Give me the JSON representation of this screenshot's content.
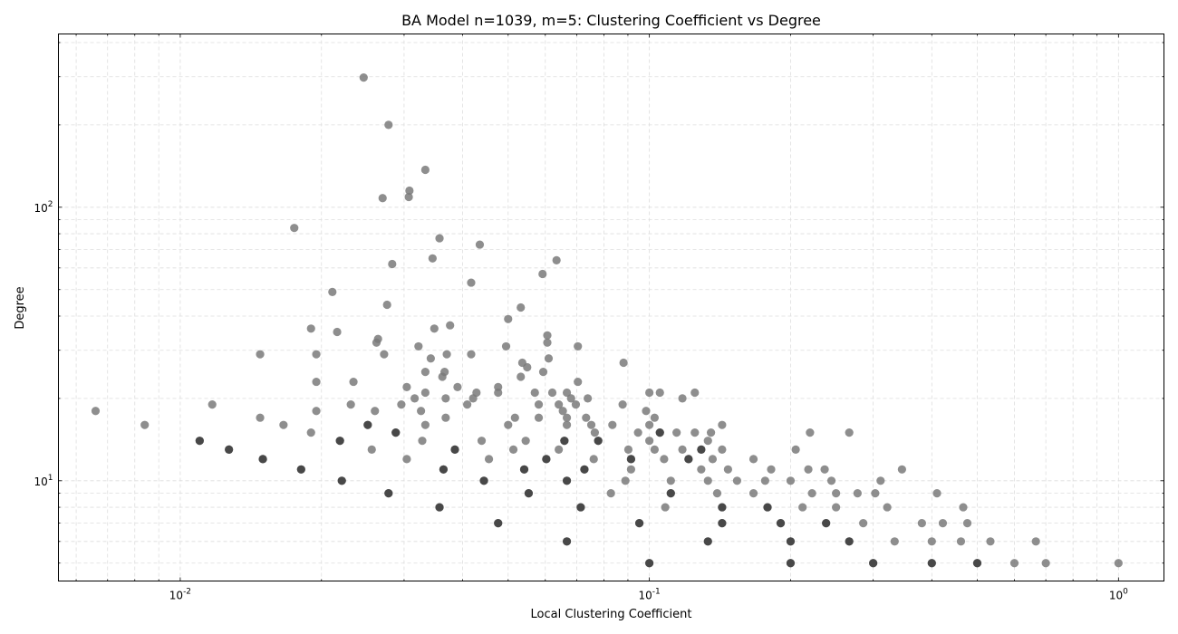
{
  "chart_data": {
    "type": "scatter",
    "title": "BA Model n=1039, m=5: Clustering Coefficient vs Degree",
    "xlabel": "Local Clustering Coefficient",
    "ylabel": "Degree",
    "xscale": "log",
    "yscale": "log",
    "xlim": [
      0.0055,
      1.25
    ],
    "ylim": [
      4.3,
      430
    ],
    "grid": true,
    "x_ticks": [
      {
        "value": 0.01,
        "label": "10^-2"
      },
      {
        "value": 0.1,
        "label": "10^-1"
      },
      {
        "value": 1,
        "label": "10^0"
      }
    ],
    "y_ticks": [
      {
        "value": 10,
        "label": "10^1"
      },
      {
        "value": 100,
        "label": "10^2"
      }
    ],
    "point_colors": {
      "light": "#7a7a7a",
      "dense": "#404040"
    },
    "points": [
      [
        0.0066,
        18
      ],
      [
        0.0084,
        16
      ],
      [
        0.011,
        14
      ],
      [
        0.0117,
        19
      ],
      [
        0.0127,
        13
      ],
      [
        0.0148,
        17
      ],
      [
        0.0148,
        29
      ],
      [
        0.015,
        12
      ],
      [
        0.0166,
        16
      ],
      [
        0.0175,
        84
      ],
      [
        0.0181,
        11
      ],
      [
        0.019,
        15
      ],
      [
        0.019,
        36
      ],
      [
        0.0195,
        23
      ],
      [
        0.0195,
        29
      ],
      [
        0.0195,
        18
      ],
      [
        0.0211,
        49
      ],
      [
        0.0216,
        35
      ],
      [
        0.0219,
        14
      ],
      [
        0.0221,
        10
      ],
      [
        0.0234,
        23
      ],
      [
        0.0231,
        19
      ],
      [
        0.0246,
        298
      ],
      [
        0.0251,
        16
      ],
      [
        0.0256,
        13
      ],
      [
        0.026,
        18
      ],
      [
        0.0262,
        32
      ],
      [
        0.0264,
        33
      ],
      [
        0.027,
        108
      ],
      [
        0.0272,
        29
      ],
      [
        0.0276,
        44
      ],
      [
        0.0278,
        200
      ],
      [
        0.0278,
        9
      ],
      [
        0.0283,
        62
      ],
      [
        0.0288,
        15
      ],
      [
        0.0296,
        19
      ],
      [
        0.0304,
        22
      ],
      [
        0.0304,
        12
      ],
      [
        0.0308,
        115
      ],
      [
        0.0307,
        109
      ],
      [
        0.0316,
        20
      ],
      [
        0.0322,
        31
      ],
      [
        0.0326,
        18
      ],
      [
        0.0328,
        14
      ],
      [
        0.0333,
        137
      ],
      [
        0.0333,
        21
      ],
      [
        0.0333,
        25
      ],
      [
        0.0333,
        16
      ],
      [
        0.0342,
        28
      ],
      [
        0.0345,
        65
      ],
      [
        0.0348,
        36
      ],
      [
        0.0357,
        8
      ],
      [
        0.0357,
        77
      ],
      [
        0.0362,
        24
      ],
      [
        0.0364,
        11
      ],
      [
        0.0366,
        25
      ],
      [
        0.0368,
        20
      ],
      [
        0.0368,
        17
      ],
      [
        0.037,
        29
      ],
      [
        0.0376,
        37
      ],
      [
        0.0385,
        13
      ],
      [
        0.039,
        22
      ],
      [
        0.0409,
        19
      ],
      [
        0.0417,
        29
      ],
      [
        0.0417,
        53
      ],
      [
        0.0421,
        20
      ],
      [
        0.0428,
        21
      ],
      [
        0.0435,
        73
      ],
      [
        0.0439,
        14
      ],
      [
        0.0444,
        10
      ],
      [
        0.0455,
        12
      ],
      [
        0.0476,
        7
      ],
      [
        0.0476,
        21
      ],
      [
        0.0476,
        22
      ],
      [
        0.0495,
        31
      ],
      [
        0.05,
        39
      ],
      [
        0.05,
        16
      ],
      [
        0.0513,
        13
      ],
      [
        0.0517,
        17
      ],
      [
        0.0532,
        43
      ],
      [
        0.0532,
        24
      ],
      [
        0.0536,
        27
      ],
      [
        0.0541,
        11
      ],
      [
        0.0545,
        14
      ],
      [
        0.0549,
        26
      ],
      [
        0.0553,
        9
      ],
      [
        0.057,
        21
      ],
      [
        0.0581,
        17
      ],
      [
        0.0581,
        19
      ],
      [
        0.0592,
        57
      ],
      [
        0.0594,
        25
      ],
      [
        0.0603,
        12
      ],
      [
        0.0606,
        34
      ],
      [
        0.0606,
        32
      ],
      [
        0.061,
        28
      ],
      [
        0.0621,
        21
      ],
      [
        0.0634,
        64
      ],
      [
        0.0641,
        19
      ],
      [
        0.0641,
        13
      ],
      [
        0.0654,
        18
      ],
      [
        0.0659,
        14
      ],
      [
        0.0667,
        6
      ],
      [
        0.0667,
        10
      ],
      [
        0.0667,
        16
      ],
      [
        0.0667,
        17
      ],
      [
        0.0667,
        21
      ],
      [
        0.0681,
        20
      ],
      [
        0.0697,
        19
      ],
      [
        0.0704,
        23
      ],
      [
        0.0704,
        31
      ],
      [
        0.0714,
        8
      ],
      [
        0.0727,
        11
      ],
      [
        0.0733,
        17
      ],
      [
        0.0739,
        20
      ],
      [
        0.0752,
        16
      ],
      [
        0.0761,
        12
      ],
      [
        0.0765,
        15
      ],
      [
        0.0778,
        14
      ],
      [
        0.0828,
        9
      ],
      [
        0.0834,
        16
      ],
      [
        0.0877,
        19
      ],
      [
        0.0881,
        27
      ],
      [
        0.0889,
        10
      ],
      [
        0.0902,
        13
      ],
      [
        0.0914,
        12
      ],
      [
        0.0914,
        11
      ],
      [
        0.0946,
        15
      ],
      [
        0.0952,
        7
      ],
      [
        0.0984,
        18
      ],
      [
        0.1,
        5
      ],
      [
        0.1,
        14
      ],
      [
        0.1,
        16
      ],
      [
        0.1,
        21
      ],
      [
        0.1026,
        13
      ],
      [
        0.1026,
        17
      ],
      [
        0.1053,
        15
      ],
      [
        0.1053,
        21
      ],
      [
        0.1075,
        12
      ],
      [
        0.1081,
        8
      ],
      [
        0.1111,
        9
      ],
      [
        0.1111,
        10
      ],
      [
        0.1143,
        15
      ],
      [
        0.1176,
        13
      ],
      [
        0.1176,
        20
      ],
      [
        0.1212,
        12
      ],
      [
        0.125,
        15
      ],
      [
        0.125,
        21
      ],
      [
        0.129,
        13
      ],
      [
        0.129,
        11
      ],
      [
        0.1333,
        6
      ],
      [
        0.1333,
        14
      ],
      [
        0.1333,
        10
      ],
      [
        0.1353,
        15
      ],
      [
        0.1364,
        12
      ],
      [
        0.1395,
        9
      ],
      [
        0.1429,
        8
      ],
      [
        0.1429,
        7
      ],
      [
        0.1429,
        13
      ],
      [
        0.1429,
        16
      ],
      [
        0.1471,
        11
      ],
      [
        0.1538,
        10
      ],
      [
        0.1667,
        9
      ],
      [
        0.1667,
        12
      ],
      [
        0.1765,
        10
      ],
      [
        0.1786,
        8
      ],
      [
        0.1818,
        11
      ],
      [
        0.1905,
        7
      ],
      [
        0.2,
        5
      ],
      [
        0.2,
        6
      ],
      [
        0.2,
        10
      ],
      [
        0.2051,
        13
      ],
      [
        0.2121,
        8
      ],
      [
        0.2182,
        11
      ],
      [
        0.22,
        15
      ],
      [
        0.2222,
        9
      ],
      [
        0.2364,
        11
      ],
      [
        0.2381,
        7
      ],
      [
        0.2444,
        10
      ],
      [
        0.25,
        8
      ],
      [
        0.25,
        9
      ],
      [
        0.2667,
        6
      ],
      [
        0.2667,
        15
      ],
      [
        0.2778,
        9
      ],
      [
        0.2857,
        7
      ],
      [
        0.3,
        5
      ],
      [
        0.303,
        9
      ],
      [
        0.3111,
        10
      ],
      [
        0.3214,
        8
      ],
      [
        0.3333,
        6
      ],
      [
        0.3455,
        11
      ],
      [
        0.381,
        7
      ],
      [
        0.4,
        5
      ],
      [
        0.4,
        6
      ],
      [
        0.4103,
        9
      ],
      [
        0.4222,
        7
      ],
      [
        0.4615,
        6
      ],
      [
        0.4667,
        8
      ],
      [
        0.4762,
        7
      ],
      [
        0.5,
        5
      ],
      [
        0.5333,
        6
      ],
      [
        0.6,
        5
      ],
      [
        0.6667,
        6
      ],
      [
        0.7,
        5
      ],
      [
        1.0,
        5
      ]
    ],
    "dense_points": [
      [
        0.011,
        14
      ],
      [
        0.0127,
        13
      ],
      [
        0.015,
        12
      ],
      [
        0.0181,
        11
      ],
      [
        0.0221,
        10
      ],
      [
        0.0278,
        9
      ],
      [
        0.0357,
        8
      ],
      [
        0.0476,
        7
      ],
      [
        0.0667,
        6
      ],
      [
        0.1,
        5
      ],
      [
        0.0444,
        10
      ],
      [
        0.0553,
        9
      ],
      [
        0.0714,
        8
      ],
      [
        0.0952,
        7
      ],
      [
        0.1333,
        6
      ],
      [
        0.2,
        5
      ],
      [
        0.1429,
        8
      ],
      [
        0.1429,
        7
      ],
      [
        0.2,
        6
      ],
      [
        0.3,
        5
      ],
      [
        0.4,
        5
      ],
      [
        0.5,
        5
      ],
      [
        0.1786,
        8
      ],
      [
        0.1905,
        7
      ],
      [
        0.2381,
        7
      ],
      [
        0.2667,
        6
      ],
      [
        0.0364,
        11
      ],
      [
        0.0288,
        15
      ],
      [
        0.0251,
        16
      ],
      [
        0.0219,
        14
      ],
      [
        0.0385,
        13
      ],
      [
        0.0603,
        12
      ],
      [
        0.0667,
        10
      ],
      [
        0.0914,
        12
      ],
      [
        0.1111,
        9
      ],
      [
        0.1212,
        12
      ],
      [
        0.129,
        13
      ],
      [
        0.0659,
        14
      ],
      [
        0.0778,
        14
      ],
      [
        0.1053,
        15
      ],
      [
        0.0541,
        11
      ],
      [
        0.0727,
        11
      ]
    ]
  }
}
